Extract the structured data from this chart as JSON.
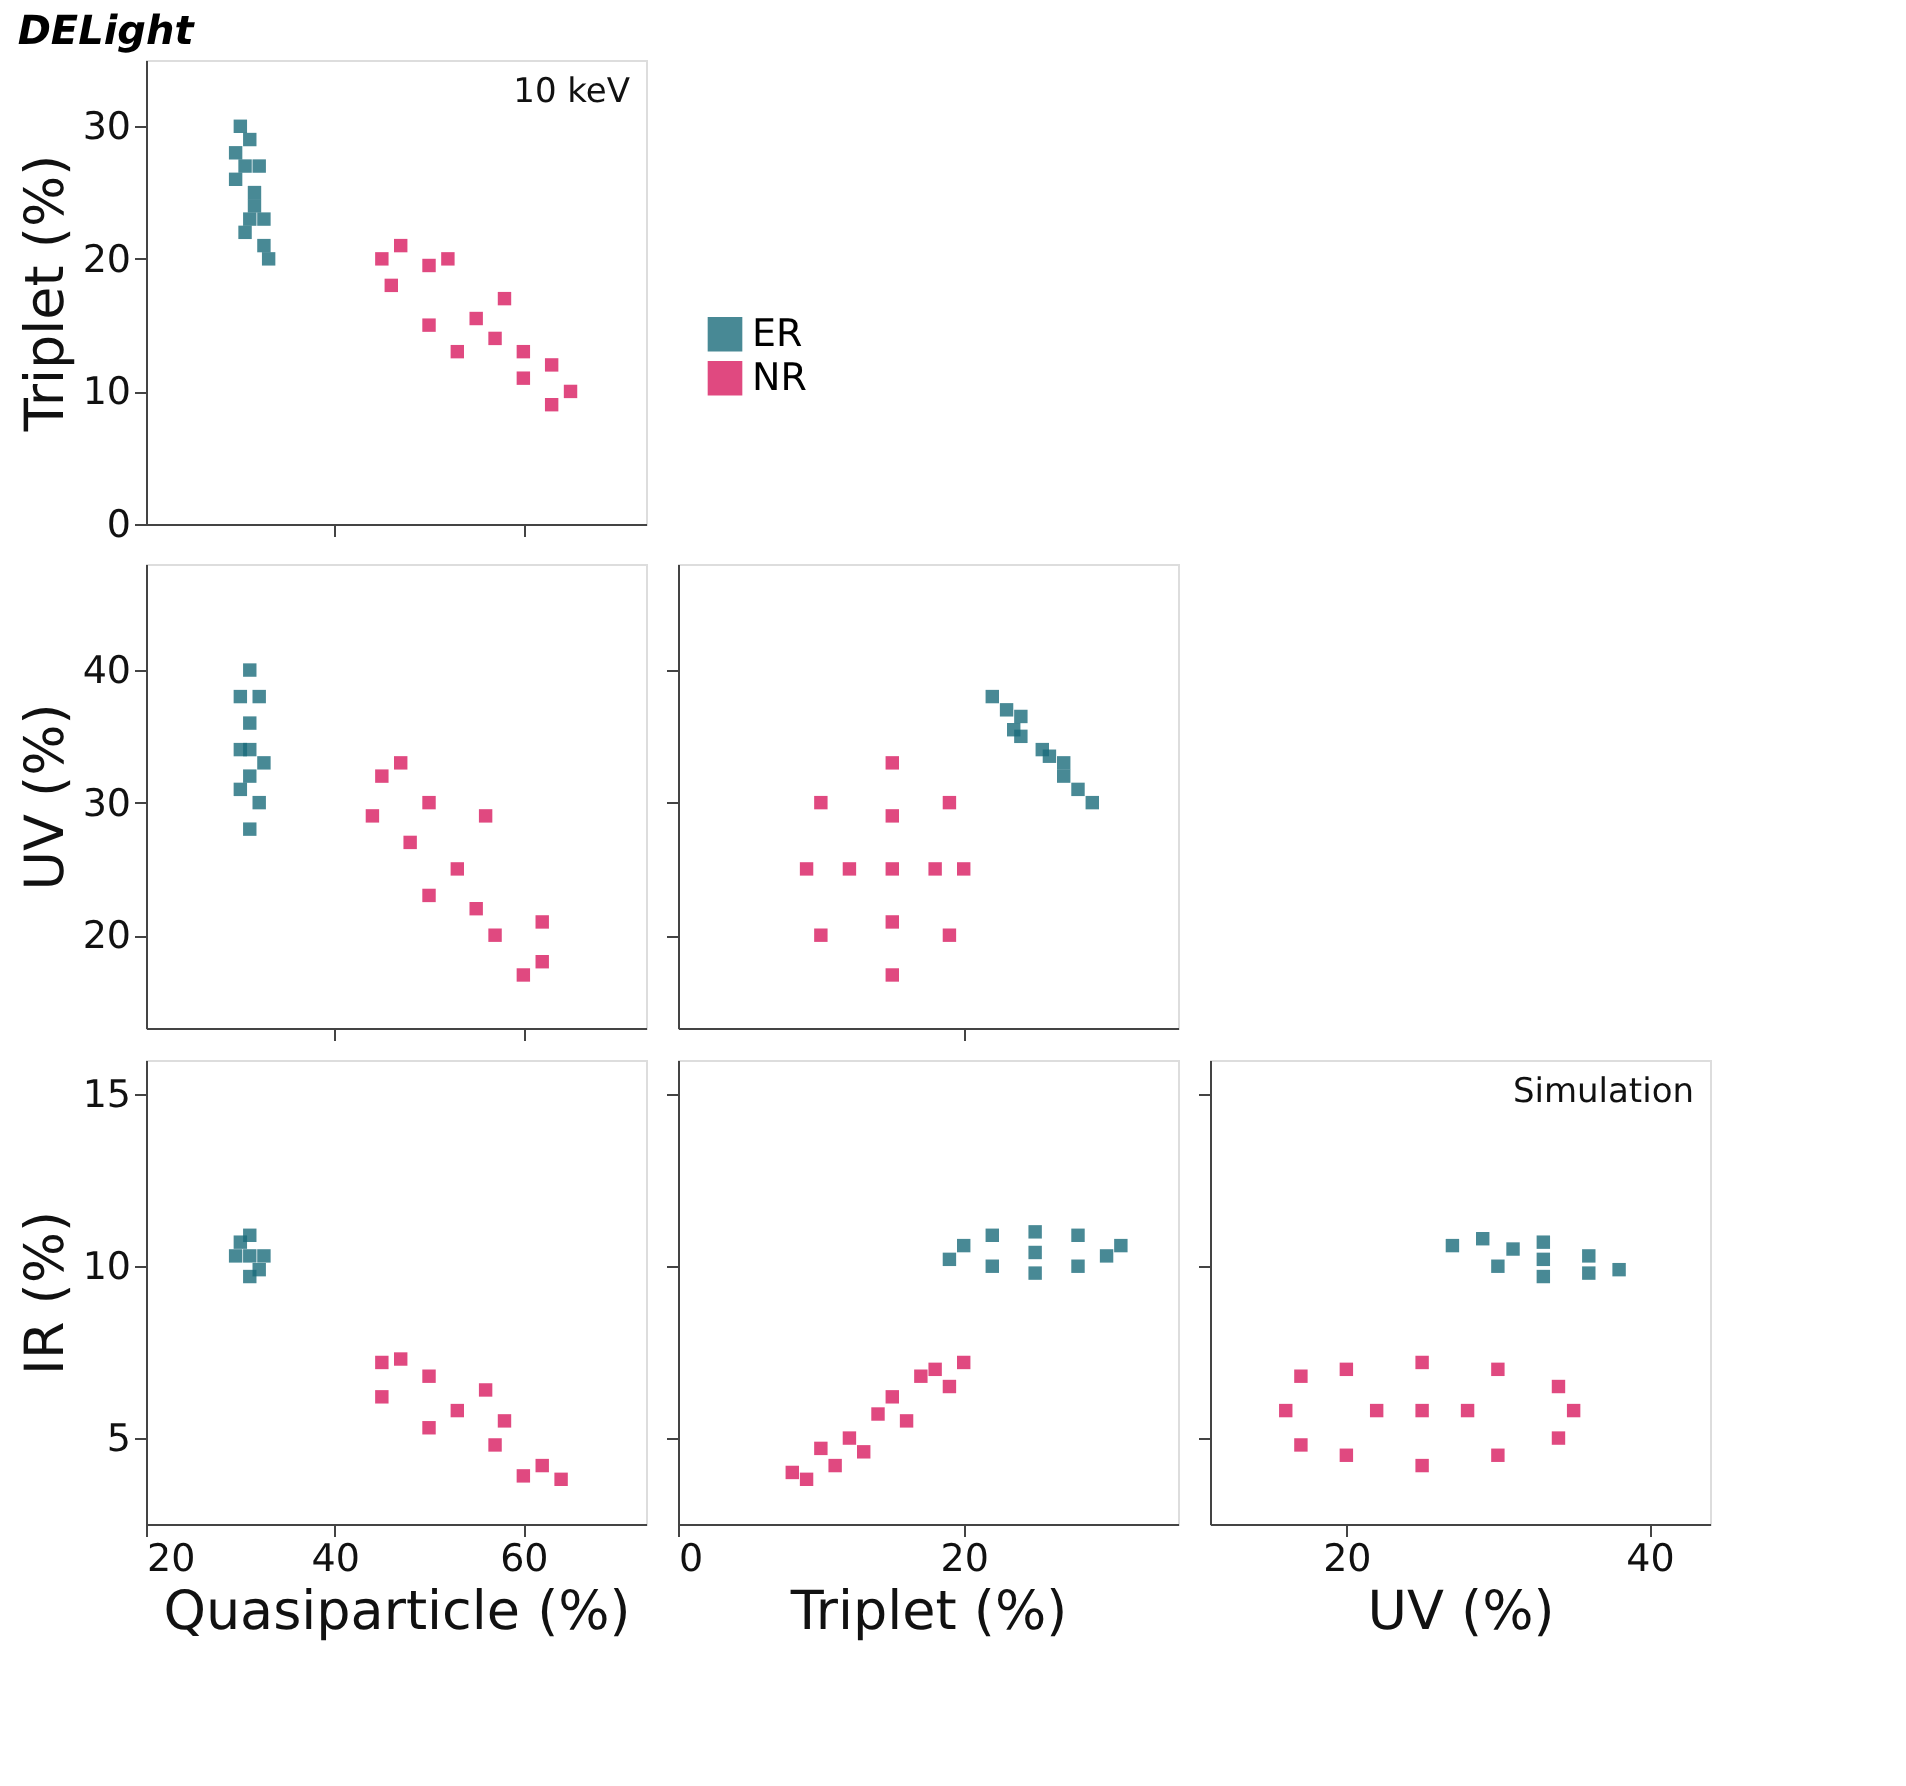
{
  "chart_data": [
    {
      "type": "scatter",
      "title": "DELight",
      "ylabel": "Triplet (%)",
      "annotations": [
        "10 keV"
      ],
      "xlim": [
        20,
        73
      ],
      "xticks": [
        40,
        60
      ],
      "ylim": [
        0,
        35
      ],
      "yticks": [
        0,
        10,
        20,
        30
      ],
      "tick_labels": "y",
      "grid": false,
      "legend": "right",
      "marker": "square",
      "series": [
        {
          "name": "ER",
          "color": "#1a6b7a",
          "x": [
            31.5,
            30,
            29.5,
            30.5,
            31,
            32.5,
            33,
            32.5,
            29.5,
            32,
            31,
            30.5,
            31.5
          ],
          "values": [
            25,
            30,
            28,
            27,
            23,
            21,
            20,
            23,
            26,
            27,
            29,
            22,
            24
          ]
        },
        {
          "name": "NR",
          "color": "#d81b60",
          "x": [
            55,
            45,
            47,
            46,
            50,
            52,
            60,
            63,
            65,
            63,
            60,
            50,
            58,
            53,
            57
          ],
          "values": [
            15.5,
            20,
            21,
            18,
            19.5,
            20,
            13,
            12,
            10,
            9,
            11,
            15,
            17,
            13,
            14
          ]
        }
      ]
    },
    {
      "type": "scatter",
      "ylabel": "UV (%)",
      "xlim": [
        20,
        73
      ],
      "xticks": [
        40,
        60
      ],
      "ylim": [
        13,
        48
      ],
      "yticks": [
        20,
        30,
        40
      ],
      "tick_labels": "y",
      "grid": false,
      "marker": "square",
      "series": [
        {
          "color": "#1a6b7a",
          "x": [
            31,
            31,
            30,
            32,
            30,
            32.5,
            30,
            32,
            31,
            31,
            31
          ],
          "values": [
            34,
            40,
            38,
            38,
            34,
            33,
            31,
            30,
            28,
            36,
            32
          ]
        },
        {
          "color": "#d81b60",
          "x": [
            53,
            45,
            47,
            44,
            50,
            56,
            62,
            60,
            62,
            57,
            50,
            55,
            48
          ],
          "values": [
            25,
            32,
            33,
            29,
            30,
            29,
            18,
            17,
            21,
            20,
            23,
            22,
            27
          ]
        }
      ]
    },
    {
      "type": "scatter",
      "xlim": [
        0,
        35
      ],
      "xticks": [
        20
      ],
      "ylim": [
        13,
        48
      ],
      "yticks": [
        20,
        30,
        40
      ],
      "tick_labels": false,
      "grid": false,
      "marker": "square",
      "series": [
        {
          "color": "#1a6b7a",
          "x": [
            22,
            23,
            24,
            25.5,
            27,
            28,
            29,
            24,
            26,
            23.5,
            27
          ],
          "values": [
            38,
            37,
            36.5,
            34,
            32,
            31,
            30,
            35,
            33.5,
            35.5,
            33
          ]
        },
        {
          "color": "#d81b60",
          "x": [
            15,
            9,
            10,
            10,
            15,
            15,
            20,
            19,
            19,
            12,
            18,
            15,
            15
          ],
          "values": [
            25,
            25,
            30,
            20,
            33,
            17,
            25,
            30,
            20,
            25,
            25,
            29,
            21
          ]
        }
      ]
    },
    {
      "type": "scatter",
      "xlabel": "Quasiparticle (%)",
      "ylabel": "IR (%)",
      "xlim": [
        20,
        73
      ],
      "xticks": [
        20,
        40,
        60
      ],
      "ylim": [
        2.5,
        16
      ],
      "yticks": [
        5,
        10,
        15
      ],
      "grid": false,
      "marker": "square",
      "series": [
        {
          "color": "#1a6b7a",
          "x": [
            31,
            29.5,
            32.5,
            31,
            31,
            30,
            32
          ],
          "values": [
            10.3,
            10.3,
            10.3,
            10.9,
            9.7,
            10.7,
            9.9
          ]
        },
        {
          "color": "#d81b60",
          "x": [
            53,
            45,
            47,
            45,
            50,
            56,
            64,
            62,
            60,
            57,
            50,
            58
          ],
          "values": [
            5.8,
            7.2,
            7.3,
            6.2,
            6.8,
            6.4,
            3.8,
            4.2,
            3.9,
            4.8,
            5.3,
            5.5
          ]
        }
      ]
    },
    {
      "type": "scatter",
      "xlabel": "Triplet (%)",
      "xlim": [
        0,
        35
      ],
      "xticks": [
        0,
        20
      ],
      "ylim": [
        2.5,
        16
      ],
      "yticks": [
        5,
        10,
        15
      ],
      "tick_labels": "x",
      "grid": false,
      "marker": "square",
      "series": [
        {
          "color": "#1a6b7a",
          "x": [
            25,
            19,
            20,
            22,
            22,
            25,
            25,
            28,
            28,
            31,
            30
          ],
          "values": [
            10.4,
            10.2,
            10.6,
            10.9,
            10,
            11,
            9.8,
            10.9,
            10,
            10.6,
            10.3
          ]
        },
        {
          "color": "#d81b60",
          "x": [
            8,
            9,
            10,
            12,
            13,
            14,
            16,
            17,
            19,
            20,
            18,
            11,
            15
          ],
          "values": [
            4,
            3.8,
            4.7,
            5,
            4.6,
            5.7,
            5.5,
            6.8,
            6.5,
            7.2,
            7,
            4.2,
            6.2
          ]
        }
      ]
    },
    {
      "type": "scatter",
      "xlabel": "UV (%)",
      "annotations": [
        "Simulation"
      ],
      "xlim": [
        11,
        44
      ],
      "xticks": [
        20,
        40
      ],
      "ylim": [
        2.5,
        16
      ],
      "yticks": [
        5,
        10,
        15
      ],
      "tick_labels": "x",
      "grid": false,
      "marker": "square",
      "series": [
        {
          "color": "#1a6b7a",
          "x": [
            33,
            27,
            29,
            30,
            33,
            33,
            36,
            38,
            36,
            31
          ],
          "values": [
            10.2,
            10.6,
            10.8,
            10,
            10.7,
            9.7,
            10.3,
            9.9,
            9.8,
            10.5
          ]
        },
        {
          "color": "#d81b60",
          "x": [
            25,
            16,
            17,
            17,
            20,
            20,
            25,
            25,
            30,
            30,
            34,
            34,
            35,
            22,
            28
          ],
          "values": [
            5.8,
            5.8,
            6.8,
            4.8,
            7,
            4.5,
            7.2,
            4.2,
            7,
            4.5,
            6.5,
            5,
            5.8,
            5.8,
            5.8
          ]
        }
      ]
    }
  ]
}
